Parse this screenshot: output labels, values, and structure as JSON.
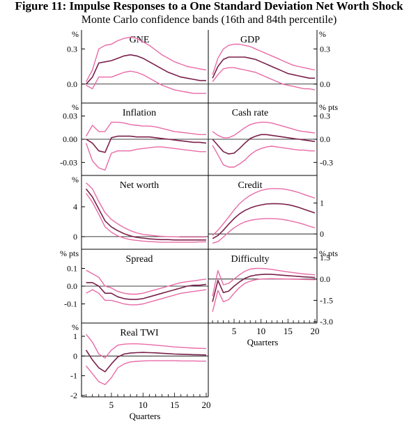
{
  "title": "Figure 11: Impulse Responses to a One Standard Deviation Net Worth Shock",
  "subtitle": "Monte Carlo confidence bands (16th and 84th percentile)",
  "colors": {
    "median": "#7a1f4a",
    "band": "#e86aa6",
    "axis": "#000000"
  },
  "chart_data": [
    {
      "type": "line",
      "title": "GNE",
      "ylabel": "%",
      "ylim": [
        -0.15,
        0.45
      ],
      "yticks": [
        {
          "v": 0.3,
          "label": "0.3"
        },
        {
          "v": 0.0,
          "label": "0.0"
        }
      ],
      "x": [
        1,
        2,
        3,
        4,
        5,
        6,
        7,
        8,
        9,
        10,
        11,
        12,
        13,
        14,
        15,
        16,
        17,
        18,
        19,
        20
      ],
      "series": [
        {
          "role": "upper",
          "values": [
            0.02,
            0.12,
            0.3,
            0.33,
            0.34,
            0.37,
            0.39,
            0.4,
            0.39,
            0.36,
            0.33,
            0.29,
            0.25,
            0.22,
            0.19,
            0.17,
            0.15,
            0.14,
            0.13,
            0.12
          ]
        },
        {
          "role": "median",
          "values": [
            0.0,
            0.06,
            0.18,
            0.19,
            0.2,
            0.22,
            0.24,
            0.25,
            0.24,
            0.22,
            0.19,
            0.16,
            0.13,
            0.1,
            0.08,
            0.06,
            0.05,
            0.04,
            0.03,
            0.03
          ]
        },
        {
          "role": "lower",
          "values": [
            -0.01,
            -0.04,
            0.06,
            0.06,
            0.06,
            0.08,
            0.1,
            0.11,
            0.1,
            0.08,
            0.05,
            0.02,
            -0.01,
            -0.03,
            -0.05,
            -0.06,
            -0.07,
            -0.08,
            -0.08,
            -0.08
          ]
        }
      ]
    },
    {
      "type": "line",
      "title": "GDP",
      "ylabel": "%",
      "ylim": [
        -0.15,
        0.45
      ],
      "yticks": [
        {
          "v": 0.3,
          "label": "0.3"
        },
        {
          "v": 0.0,
          "label": "0.0"
        }
      ],
      "x": [
        1,
        2,
        3,
        4,
        5,
        6,
        7,
        8,
        9,
        10,
        11,
        12,
        13,
        14,
        15,
        16,
        17,
        18,
        19,
        20
      ],
      "series": [
        {
          "role": "upper",
          "values": [
            0.08,
            0.22,
            0.3,
            0.33,
            0.34,
            0.34,
            0.33,
            0.32,
            0.3,
            0.28,
            0.26,
            0.24,
            0.22,
            0.2,
            0.18,
            0.16,
            0.15,
            0.14,
            0.13,
            0.12
          ]
        },
        {
          "role": "median",
          "values": [
            0.05,
            0.15,
            0.21,
            0.23,
            0.23,
            0.23,
            0.23,
            0.22,
            0.21,
            0.19,
            0.17,
            0.15,
            0.13,
            0.11,
            0.09,
            0.08,
            0.07,
            0.06,
            0.05,
            0.05
          ]
        },
        {
          "role": "lower",
          "values": [
            0.02,
            0.08,
            0.13,
            0.14,
            0.14,
            0.13,
            0.12,
            0.11,
            0.1,
            0.08,
            0.06,
            0.04,
            0.02,
            0.0,
            -0.01,
            -0.02,
            -0.03,
            -0.04,
            -0.04,
            -0.05
          ]
        }
      ]
    },
    {
      "type": "line",
      "title": "Inflation",
      "ylabel": "%",
      "ylim": [
        -0.045,
        0.045
      ],
      "yticks": [
        {
          "v": 0.03,
          "label": "0.03"
        },
        {
          "v": 0.0,
          "label": "0.00"
        },
        {
          "v": -0.03,
          "label": "-0.03"
        }
      ],
      "x": [
        1,
        2,
        3,
        4,
        5,
        6,
        7,
        8,
        9,
        10,
        11,
        12,
        13,
        14,
        15,
        16,
        17,
        18,
        19,
        20
      ],
      "series": [
        {
          "role": "upper",
          "values": [
            0.004,
            0.018,
            0.01,
            0.01,
            0.022,
            0.022,
            0.021,
            0.019,
            0.018,
            0.017,
            0.017,
            0.016,
            0.014,
            0.012,
            0.01,
            0.009,
            0.008,
            0.007,
            0.006,
            0.006
          ]
        },
        {
          "role": "median",
          "values": [
            0.0,
            -0.005,
            -0.015,
            -0.017,
            0.002,
            0.004,
            0.004,
            0.004,
            0.003,
            0.003,
            0.003,
            0.002,
            0.001,
            0.0,
            -0.001,
            -0.002,
            -0.003,
            -0.004,
            -0.004,
            -0.005
          ]
        },
        {
          "role": "lower",
          "values": [
            -0.005,
            -0.028,
            -0.037,
            -0.04,
            -0.018,
            -0.015,
            -0.015,
            -0.015,
            -0.013,
            -0.012,
            -0.011,
            -0.01,
            -0.01,
            -0.011,
            -0.012,
            -0.013,
            -0.014,
            -0.015,
            -0.016,
            -0.016
          ]
        }
      ]
    },
    {
      "type": "line",
      "title": "Cash rate",
      "ylabel": "% pts",
      "ylim": [
        -0.45,
        0.45
      ],
      "yticks": [
        {
          "v": 0.3,
          "label": "0.3"
        },
        {
          "v": 0.0,
          "label": "0.0"
        },
        {
          "v": -0.3,
          "label": "-0.3"
        }
      ],
      "x": [
        1,
        2,
        3,
        4,
        5,
        6,
        7,
        8,
        9,
        10,
        11,
        12,
        13,
        14,
        15,
        16,
        17,
        18,
        19,
        20
      ],
      "series": [
        {
          "role": "upper",
          "values": [
            0.1,
            0.05,
            0.02,
            0.02,
            0.05,
            0.1,
            0.15,
            0.19,
            0.21,
            0.22,
            0.22,
            0.21,
            0.19,
            0.17,
            0.15,
            0.13,
            0.11,
            0.1,
            0.09,
            0.08
          ]
        },
        {
          "role": "median",
          "values": [
            0.0,
            -0.08,
            -0.16,
            -0.19,
            -0.18,
            -0.12,
            -0.05,
            0.01,
            0.04,
            0.06,
            0.06,
            0.05,
            0.04,
            0.03,
            0.02,
            0.01,
            0.0,
            -0.01,
            -0.02,
            -0.03
          ]
        },
        {
          "role": "lower",
          "values": [
            -0.08,
            -0.2,
            -0.33,
            -0.36,
            -0.36,
            -0.32,
            -0.27,
            -0.2,
            -0.15,
            -0.12,
            -0.1,
            -0.09,
            -0.1,
            -0.11,
            -0.12,
            -0.13,
            -0.14,
            -0.14,
            -0.15,
            -0.15
          ]
        }
      ]
    },
    {
      "type": "line",
      "title": "Net worth",
      "ylabel": "%",
      "ylim": [
        -1.5,
        8
      ],
      "yticks": [
        {
          "v": 4,
          "label": "4"
        },
        {
          "v": 0,
          "label": "0"
        }
      ],
      "x": [
        1,
        2,
        3,
        4,
        5,
        6,
        7,
        8,
        9,
        10,
        11,
        12,
        13,
        14,
        15,
        16,
        17,
        18,
        19,
        20
      ],
      "series": [
        {
          "role": "upper",
          "values": [
            7.2,
            6.4,
            4.7,
            3.2,
            2.3,
            1.7,
            1.2,
            0.8,
            0.5,
            0.3,
            0.2,
            0.1,
            0.05,
            0.0,
            0.0,
            -0.05,
            -0.05,
            -0.05,
            -0.05,
            -0.05
          ]
        },
        {
          "role": "median",
          "values": [
            6.4,
            5.3,
            3.7,
            2.1,
            1.3,
            0.8,
            0.4,
            0.1,
            -0.1,
            -0.2,
            -0.3,
            -0.35,
            -0.4,
            -0.4,
            -0.45,
            -0.45,
            -0.45,
            -0.45,
            -0.45,
            -0.45
          ]
        },
        {
          "role": "lower",
          "values": [
            5.8,
            4.6,
            3.0,
            1.3,
            0.6,
            0.1,
            -0.2,
            -0.4,
            -0.5,
            -0.6,
            -0.65,
            -0.7,
            -0.75,
            -0.75,
            -0.75,
            -0.75,
            -0.75,
            -0.75,
            -0.7,
            -0.7
          ]
        }
      ]
    },
    {
      "type": "line",
      "title": "Credit",
      "ylabel": "",
      "ylim": [
        -0.45,
        1.85
      ],
      "yticks": [
        {
          "v": 1,
          "label": "1"
        },
        {
          "v": 0,
          "label": "0"
        }
      ],
      "x": [
        1,
        2,
        3,
        4,
        5,
        6,
        7,
        8,
        9,
        10,
        11,
        12,
        13,
        14,
        15,
        16,
        17,
        18,
        19,
        20
      ],
      "series": [
        {
          "role": "upper",
          "values": [
            -0.05,
            0.12,
            0.33,
            0.55,
            0.78,
            0.98,
            1.13,
            1.25,
            1.34,
            1.41,
            1.45,
            1.47,
            1.47,
            1.46,
            1.43,
            1.39,
            1.34,
            1.28,
            1.22,
            1.16
          ]
        },
        {
          "role": "median",
          "values": [
            -0.15,
            -0.05,
            0.12,
            0.32,
            0.5,
            0.65,
            0.76,
            0.84,
            0.9,
            0.94,
            0.97,
            0.98,
            0.98,
            0.97,
            0.95,
            0.91,
            0.86,
            0.8,
            0.74,
            0.68
          ]
        },
        {
          "role": "lower",
          "values": [
            -0.3,
            -0.25,
            -0.1,
            0.06,
            0.2,
            0.31,
            0.39,
            0.44,
            0.47,
            0.49,
            0.5,
            0.5,
            0.49,
            0.47,
            0.44,
            0.4,
            0.36,
            0.31,
            0.25,
            0.2
          ]
        }
      ]
    },
    {
      "type": "line",
      "title": "Spread",
      "ylabel": "% pts",
      "ylim": [
        -0.2,
        0.2
      ],
      "yticks": [
        {
          "v": 0.1,
          "label": "0.1"
        },
        {
          "v": 0.0,
          "label": "0.0"
        },
        {
          "v": -0.1,
          "label": "-0.1"
        }
      ],
      "x": [
        1,
        2,
        3,
        4,
        5,
        6,
        7,
        8,
        9,
        10,
        11,
        12,
        13,
        14,
        15,
        16,
        17,
        18,
        19,
        20
      ],
      "series": [
        {
          "role": "upper",
          "values": [
            0.09,
            0.07,
            0.05,
            0.0,
            -0.01,
            -0.03,
            -0.04,
            -0.045,
            -0.045,
            -0.04,
            -0.03,
            -0.02,
            -0.01,
            0.0,
            0.01,
            0.02,
            0.025,
            0.03,
            0.035,
            0.04
          ]
        },
        {
          "role": "median",
          "values": [
            0.02,
            0.02,
            0.0,
            -0.04,
            -0.04,
            -0.06,
            -0.07,
            -0.075,
            -0.075,
            -0.07,
            -0.06,
            -0.05,
            -0.04,
            -0.03,
            -0.02,
            -0.01,
            0.0,
            0.005,
            0.005,
            0.01
          ]
        },
        {
          "role": "lower",
          "values": [
            -0.04,
            -0.02,
            -0.04,
            -0.08,
            -0.08,
            -0.09,
            -0.1,
            -0.105,
            -0.105,
            -0.1,
            -0.09,
            -0.08,
            -0.07,
            -0.06,
            -0.05,
            -0.04,
            -0.035,
            -0.03,
            -0.025,
            -0.02
          ]
        }
      ]
    },
    {
      "type": "line",
      "title": "Difficulty",
      "ylabel": "% pts",
      "ylim": [
        -3.0,
        2.0
      ],
      "yticks": [
        {
          "v": 1.5,
          "label": "1.5"
        },
        {
          "v": 0.0,
          "label": "0.0"
        },
        {
          "v": -1.5,
          "label": "-1.5"
        },
        {
          "v": -3.0,
          "label": "-3.0"
        }
      ],
      "x": [
        1,
        2,
        3,
        4,
        5,
        6,
        7,
        8,
        9,
        10,
        11,
        12,
        13,
        14,
        15,
        16,
        17,
        18,
        19,
        20
      ],
      "series": [
        {
          "role": "upper",
          "values": [
            -1.2,
            0.6,
            -0.4,
            -0.3,
            0.0,
            0.3,
            0.55,
            0.7,
            0.75,
            0.75,
            0.72,
            0.68,
            0.62,
            0.56,
            0.5,
            0.45,
            0.4,
            0.36,
            0.33,
            0.3
          ]
        },
        {
          "role": "median",
          "values": [
            -1.6,
            -0.1,
            -0.95,
            -0.85,
            -0.5,
            -0.2,
            0.05,
            0.2,
            0.28,
            0.32,
            0.34,
            0.33,
            0.3,
            0.27,
            0.24,
            0.21,
            0.18,
            0.15,
            0.13,
            0.11
          ]
        },
        {
          "role": "lower",
          "values": [
            -2.3,
            -0.8,
            -1.6,
            -1.45,
            -1.0,
            -0.6,
            -0.3,
            -0.15,
            -0.05,
            0.0,
            0.02,
            0.03,
            0.02,
            0.01,
            0.0,
            -0.01,
            -0.02,
            -0.03,
            -0.04,
            -0.05
          ]
        }
      ]
    },
    {
      "type": "line",
      "title": "Real TWI",
      "ylabel": "%",
      "ylim": [
        -2,
        1.6
      ],
      "yticks": [
        {
          "v": 1,
          "label": "1"
        },
        {
          "v": 0,
          "label": "0"
        },
        {
          "v": -1,
          "label": "-1"
        },
        {
          "v": -2,
          "label": "-2"
        }
      ],
      "xticks": [
        5,
        10,
        15,
        20
      ],
      "xlabel": "Quarters",
      "x": [
        1,
        2,
        3,
        4,
        5,
        6,
        7,
        8,
        9,
        10,
        11,
        12,
        13,
        14,
        15,
        16,
        17,
        18,
        19,
        20
      ],
      "series": [
        {
          "role": "upper",
          "values": [
            1.1,
            0.7,
            0.1,
            -0.1,
            0.3,
            0.55,
            0.6,
            0.62,
            0.62,
            0.6,
            0.58,
            0.55,
            0.52,
            0.49,
            0.46,
            0.44,
            0.42,
            0.4,
            0.39,
            0.38
          ]
        },
        {
          "role": "median",
          "values": [
            0.3,
            -0.2,
            -0.6,
            -0.8,
            -0.4,
            -0.05,
            0.1,
            0.15,
            0.17,
            0.18,
            0.17,
            0.16,
            0.14,
            0.12,
            0.1,
            0.09,
            0.08,
            0.07,
            0.06,
            0.05
          ]
        },
        {
          "role": "lower",
          "values": [
            -0.5,
            -0.9,
            -1.3,
            -1.45,
            -1.1,
            -0.6,
            -0.4,
            -0.3,
            -0.27,
            -0.25,
            -0.24,
            -0.24,
            -0.24,
            -0.24,
            -0.24,
            -0.25,
            -0.25,
            -0.25,
            -0.26,
            -0.26
          ]
        }
      ]
    }
  ],
  "right_axis_xaxis": {
    "xticks": [
      5,
      10,
      15,
      20
    ],
    "xlabel": "Quarters"
  }
}
